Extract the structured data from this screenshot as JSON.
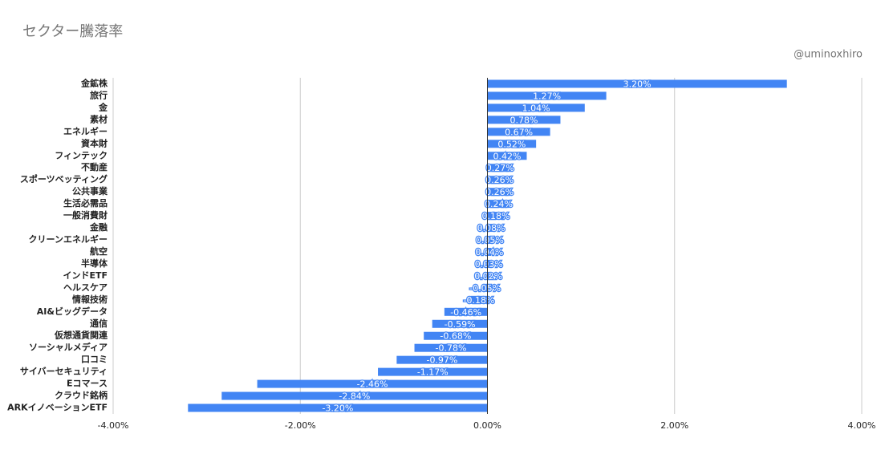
{
  "chart_data": {
    "type": "barh",
    "title": "セクター騰落率",
    "subtitle": "@uminoxhiro",
    "categories": [
      "金鉱株",
      "旅行",
      "金",
      "素材",
      "エネルギー",
      "資本財",
      "フィンテック",
      "不動産",
      "スポーツベッティング",
      "公共事業",
      "生活必需品",
      "一般消費財",
      "金融",
      "クリーンエネルギー",
      "航空",
      "半導体",
      "インドETF",
      "ヘルスケア",
      "情報技術",
      "AI&ビッグデータ",
      "通信",
      "仮想通貨関連",
      "ソーシャルメディア",
      "口コミ",
      "サイバーセキュリティ",
      "Eコマース",
      "クラウド銘柄",
      "ARKイノベーションETF"
    ],
    "values": [
      3.2,
      1.27,
      1.04,
      0.78,
      0.67,
      0.52,
      0.42,
      0.27,
      0.26,
      0.26,
      0.24,
      0.18,
      0.08,
      0.05,
      0.04,
      0.03,
      0.02,
      -0.05,
      -0.18,
      -0.46,
      -0.59,
      -0.68,
      -0.78,
      -0.97,
      -1.17,
      -2.46,
      -2.84,
      -3.2
    ],
    "value_labels": [
      "3.20%",
      "1.27%",
      "1.04%",
      "0.78%",
      "0.67%",
      "0.52%",
      "0.42%",
      "0.27%",
      "0.26%",
      "0.26%",
      "0.24%",
      "0.18%",
      "0.08%",
      "0.05%",
      "0.04%",
      "0.03%",
      "0.02%",
      "-0.05%",
      "-0.18%",
      "-0.46%",
      "-0.59%",
      "-0.68%",
      "-0.78%",
      "-0.97%",
      "-1.17%",
      "-2.46%",
      "-2.84%",
      "-3.20%"
    ],
    "color": "#4285f4",
    "xlim": [
      -4,
      4
    ],
    "xticks": [
      {
        "value": -4,
        "label": "-4.00%"
      },
      {
        "value": -2,
        "label": "-2.00%"
      },
      {
        "value": 0,
        "label": "0.00%"
      },
      {
        "value": 2,
        "label": "2.00%"
      },
      {
        "value": 4,
        "label": "4.00%"
      }
    ],
    "grid": true
  }
}
